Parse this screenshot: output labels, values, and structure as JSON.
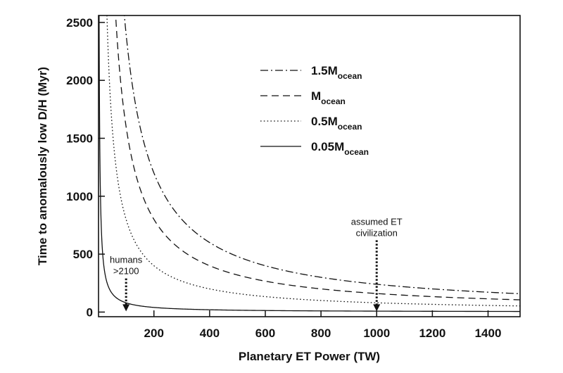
{
  "chart_data": {
    "type": "line",
    "title": "",
    "xlabel": "Planetary ET Power (TW)",
    "ylabel": "Time to anomalously low D/H (Myr)",
    "xlim": [
      1,
      1515
    ],
    "ylim": [
      -40,
      2560
    ],
    "x_ticks": [
      200,
      400,
      600,
      800,
      1000,
      1200,
      1400
    ],
    "y_ticks": [
      0,
      500,
      1000,
      1500,
      2000,
      2500
    ],
    "grid": false,
    "legend_position": "upper-center",
    "series": [
      {
        "name": "1.5M",
        "name_sub": "ocean",
        "dash": "dashdot",
        "k": 240000,
        "formula": "y = k / x",
        "sample_x": [
          94,
          100,
          200,
          400,
          600,
          800,
          1000,
          1200,
          1500
        ],
        "sample_y": [
          2553,
          2400,
          1200,
          600,
          400,
          300,
          240,
          200,
          160
        ]
      },
      {
        "name": "M",
        "name_sub": "ocean",
        "dash": "dashed",
        "k": 160000,
        "formula": "y = k / x",
        "sample_x": [
          63,
          100,
          200,
          400,
          600,
          800,
          1000,
          1200,
          1500
        ],
        "sample_y": [
          2540,
          1600,
          800,
          400,
          267,
          200,
          160,
          133,
          107
        ]
      },
      {
        "name": "0.5M",
        "name_sub": "ocean",
        "dash": "dotted",
        "k": 80000,
        "formula": "y = k / x",
        "sample_x": [
          32,
          100,
          200,
          400,
          600,
          800,
          1000,
          1200,
          1500
        ],
        "sample_y": [
          2500,
          800,
          400,
          200,
          133,
          100,
          80,
          67,
          53
        ]
      },
      {
        "name": "0.05M",
        "name_sub": "ocean",
        "dash": "solid",
        "k": 8000,
        "formula": "y = k / x",
        "sample_x": [
          20,
          50,
          100,
          200,
          400,
          600,
          1000,
          1500
        ],
        "sample_y": [
          400,
          160,
          80,
          40,
          20,
          13,
          8,
          5
        ]
      }
    ],
    "annotations": [
      {
        "lines": [
          "humans",
          ">2100"
        ],
        "x": 100,
        "arrow_from_y": 290,
        "arrow_to_y": 0
      },
      {
        "lines": [
          "assumed ET",
          "civilization"
        ],
        "x": 1000,
        "arrow_from_y": 620,
        "arrow_to_y": 0
      }
    ]
  }
}
